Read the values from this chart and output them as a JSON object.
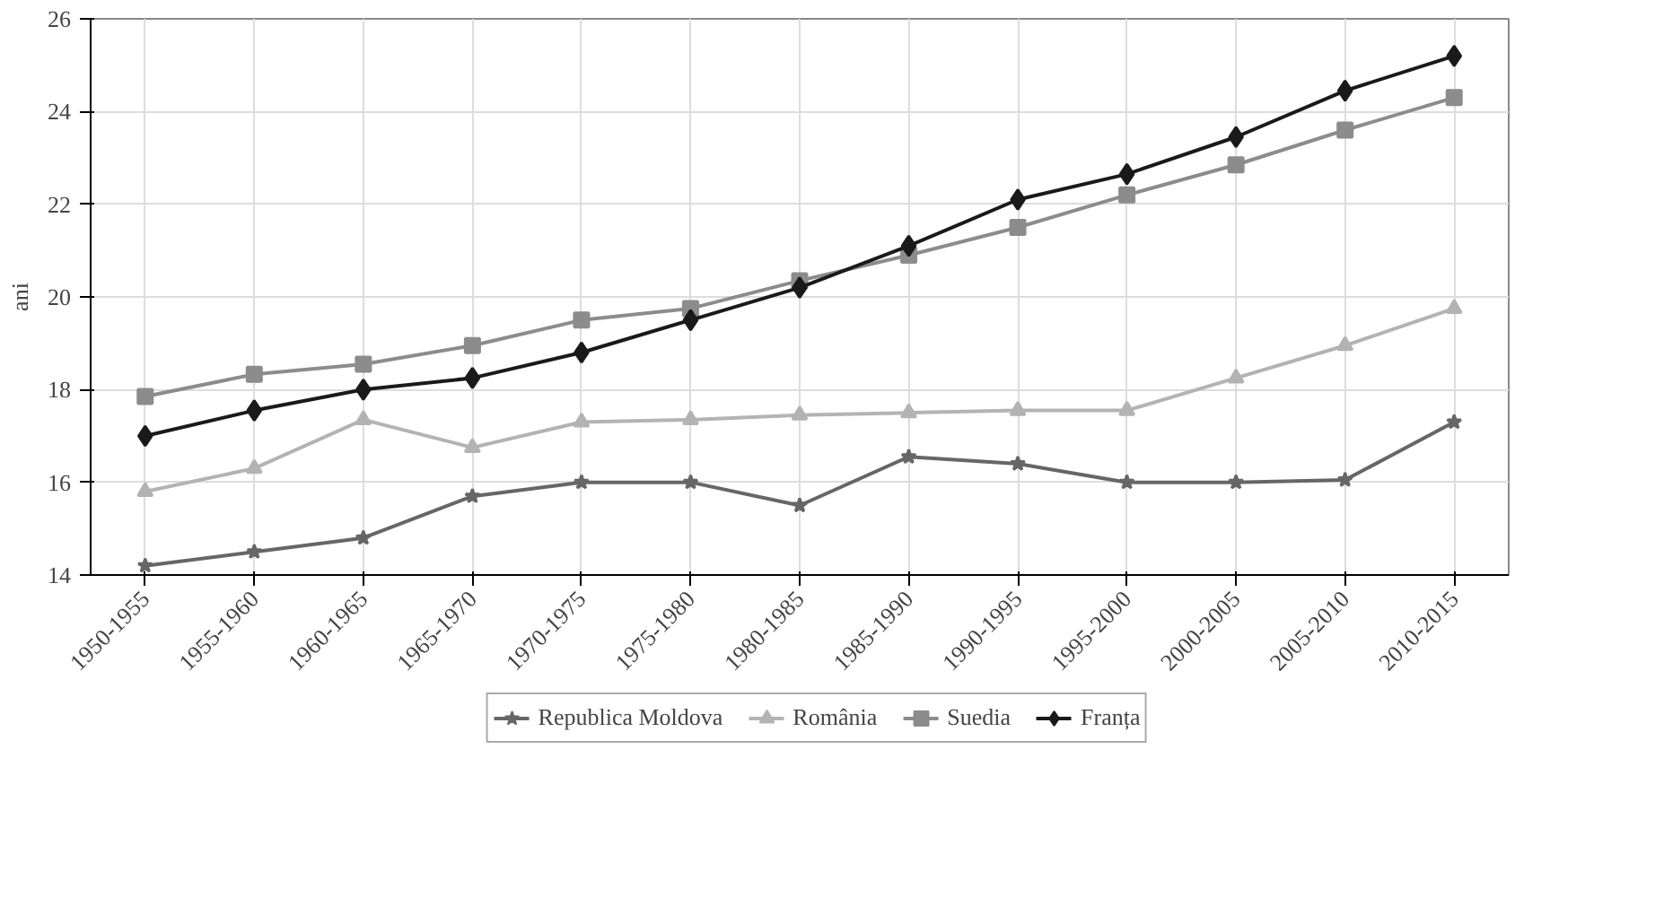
{
  "chart_data": {
    "type": "line",
    "ylabel": "ani",
    "categories": [
      "1950-1955",
      "1955-1960",
      "1960-1965",
      "1965-1970",
      "1970-1975",
      "1975-1980",
      "1980-1985",
      "1985-1990",
      "1990-1995",
      "1995-2000",
      "2000-2005",
      "2005-2010",
      "2010-2015"
    ],
    "ylim": [
      14,
      26
    ],
    "yticks": [
      14,
      16,
      18,
      20,
      22,
      24,
      26
    ],
    "grid": true,
    "legend": "bottom",
    "series": [
      {
        "name": "Republica Moldova",
        "color": "#666666",
        "marker": "star",
        "values": [
          14.2,
          14.5,
          14.8,
          15.7,
          16.0,
          16.0,
          15.5,
          16.55,
          16.4,
          16.0,
          16.0,
          16.05,
          17.3
        ]
      },
      {
        "name": "România",
        "color": "#b3b3b3",
        "marker": "triangle",
        "values": [
          15.8,
          16.3,
          17.35,
          16.75,
          17.3,
          17.35,
          17.45,
          17.5,
          17.55,
          17.55,
          18.25,
          18.95,
          19.75
        ]
      },
      {
        "name": "Suedia",
        "color": "#8c8c8c",
        "marker": "square",
        "values": [
          17.85,
          18.33,
          18.55,
          18.95,
          19.5,
          19.75,
          20.35,
          20.9,
          21.5,
          22.2,
          22.85,
          23.6,
          24.3
        ]
      },
      {
        "name": "Franța",
        "color": "#1a1a1a",
        "marker": "diamond",
        "values": [
          17.0,
          17.55,
          18.0,
          18.25,
          18.8,
          19.5,
          20.2,
          21.1,
          22.1,
          22.65,
          23.45,
          24.45,
          25.2
        ]
      }
    ]
  }
}
